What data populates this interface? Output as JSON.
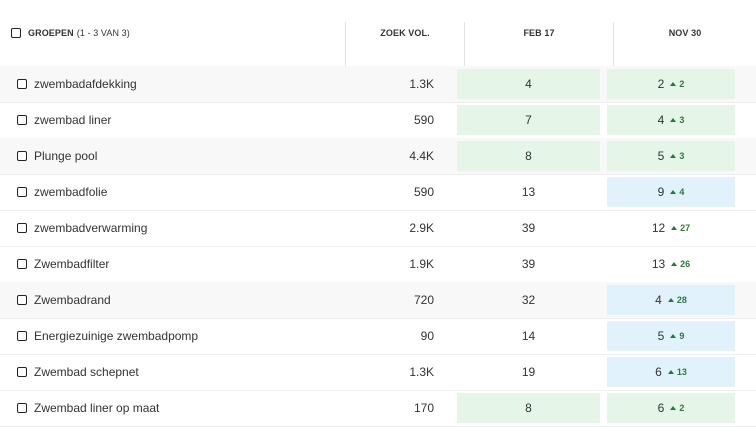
{
  "header": {
    "groups_label": "GROEPEN",
    "groups_count": "(1 - 3 VAN 3)",
    "volume_label": "ZOEK VOL.",
    "date1_label": "FEB 17",
    "date2_label": "NOV 30"
  },
  "colors": {
    "green_cell": "#e5f6e9",
    "blue_cell": "#e2f2fc",
    "delta_green": "#2c7a3e"
  },
  "rows": [
    {
      "name": "zwembadafdekking",
      "volume": "1.3K",
      "feb": "4",
      "feb_hl": "green",
      "nov": "2",
      "nov_delta": "2",
      "nov_hl": "green"
    },
    {
      "name": "zwembad liner",
      "volume": "590",
      "feb": "7",
      "feb_hl": "green",
      "nov": "4",
      "nov_delta": "3",
      "nov_hl": "green"
    },
    {
      "name": "Plunge pool",
      "volume": "4.4K",
      "feb": "8",
      "feb_hl": "green",
      "nov": "5",
      "nov_delta": "3",
      "nov_hl": "green"
    },
    {
      "name": "zwembadfolie",
      "volume": "590",
      "feb": "13",
      "feb_hl": "none",
      "nov": "9",
      "nov_delta": "4",
      "nov_hl": "blue"
    },
    {
      "name": "zwembadverwarming",
      "volume": "2.9K",
      "feb": "39",
      "feb_hl": "none",
      "nov": "12",
      "nov_delta": "27",
      "nov_hl": "none"
    },
    {
      "name": "Zwembadfilter",
      "volume": "1.9K",
      "feb": "39",
      "feb_hl": "none",
      "nov": "13",
      "nov_delta": "26",
      "nov_hl": "none"
    },
    {
      "name": "Zwembadrand",
      "volume": "720",
      "feb": "32",
      "feb_hl": "none",
      "nov": "4",
      "nov_delta": "28",
      "nov_hl": "blue"
    },
    {
      "name": "Energiezuinige zwembadpomp",
      "volume": "90",
      "feb": "14",
      "feb_hl": "none",
      "nov": "5",
      "nov_delta": "9",
      "nov_hl": "blue"
    },
    {
      "name": "Zwembad schepnet",
      "volume": "1.3K",
      "feb": "19",
      "feb_hl": "none",
      "nov": "6",
      "nov_delta": "13",
      "nov_hl": "blue"
    },
    {
      "name": "Zwembad liner op maat",
      "volume": "170",
      "feb": "8",
      "feb_hl": "green",
      "nov": "6",
      "nov_delta": "2",
      "nov_hl": "green"
    }
  ]
}
